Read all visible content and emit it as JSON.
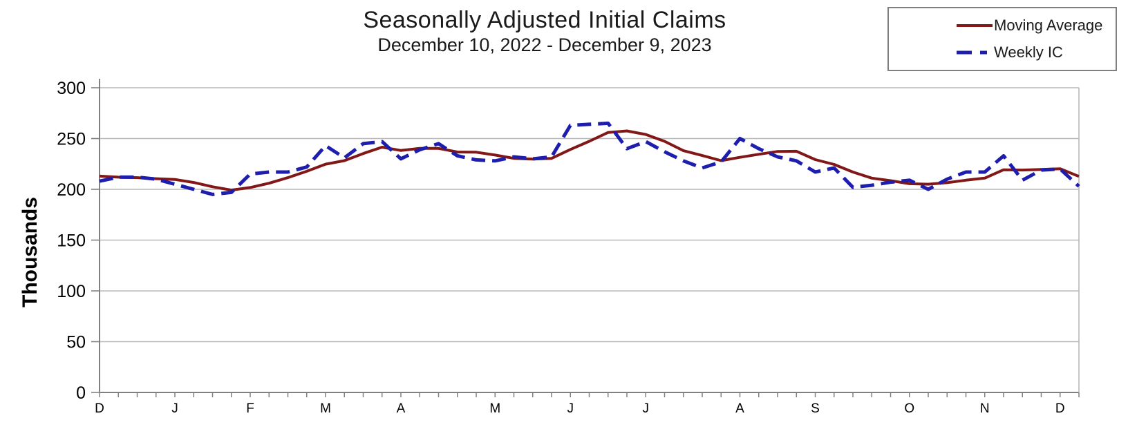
{
  "header": {
    "title": "Seasonally Adjusted Initial Claims",
    "subtitle": "December 10, 2022 - December 9, 2023"
  },
  "legend": {
    "items": [
      {
        "label": "Moving Average",
        "style": "solid",
        "color": "#811717"
      },
      {
        "label": "Weekly IC",
        "style": "dashed",
        "color": "#1E1EAE"
      }
    ]
  },
  "colors": {
    "moving_average": "#811717",
    "weekly_ic": "#1E1EAE",
    "gridline": "#b8b8b8",
    "axis": "#808080",
    "text": "#000000",
    "background": "#ffffff",
    "legend_border": "#7f7f7f"
  },
  "chart_data": {
    "type": "line",
    "title": "Seasonally Adjusted Initial Claims",
    "subtitle": "December 10, 2022 - December 9, 2023",
    "ylabel": "Thousands",
    "ylim": [
      0,
      300
    ],
    "y_ticks": [
      0,
      50,
      100,
      150,
      200,
      250,
      300
    ],
    "grid": "horizontal",
    "legend_position": "top-right",
    "n_weeks": 53,
    "x_minor_tick_unit": "week",
    "x_tick_labels": [
      "D",
      "J",
      "F",
      "M",
      "A",
      "M",
      "J",
      "J",
      "A",
      "S",
      "O",
      "N",
      "D"
    ],
    "x_tick_week_index": [
      0,
      4,
      8,
      12,
      16,
      21,
      25,
      29,
      34,
      38,
      43,
      47,
      51
    ],
    "series": [
      {
        "name": "Moving Average",
        "style": "solid",
        "color": "#811717",
        "stroke_width": 4,
        "values": [
          213,
          212,
          211.5,
          210.5,
          209.75,
          206.75,
          202.5,
          199.25,
          201.75,
          206,
          211.5,
          217.75,
          224.75,
          228.25,
          235.25,
          241.5,
          238.25,
          240.25,
          240.25,
          236.75,
          236.5,
          233.75,
          230.5,
          229.75,
          230.5,
          239.25,
          247.25,
          256,
          257.5,
          254,
          247.25,
          238,
          233.25,
          228.25,
          231.5,
          234.5,
          237.25,
          237.5,
          229.25,
          224.5,
          217,
          211,
          208.5,
          205.5,
          205,
          206.5,
          209,
          211,
          219.25,
          219,
          219.5,
          220.25,
          212.75
        ]
      },
      {
        "name": "Weekly IC",
        "style": "dashed",
        "color": "#1E1EAE",
        "stroke_width": 5,
        "values": [
          208,
          212,
          212,
          210,
          205,
          200,
          195,
          197,
          215,
          217,
          217,
          222,
          243,
          231,
          245,
          247,
          230,
          239,
          245,
          233,
          229,
          228,
          232,
          230,
          232,
          263,
          264,
          265,
          240,
          247,
          237,
          228,
          221,
          227,
          250,
          240,
          232,
          228,
          217,
          221,
          202,
          204,
          207,
          209,
          200,
          210,
          217,
          217,
          233,
          209,
          219,
          220,
          203
        ]
      }
    ]
  }
}
